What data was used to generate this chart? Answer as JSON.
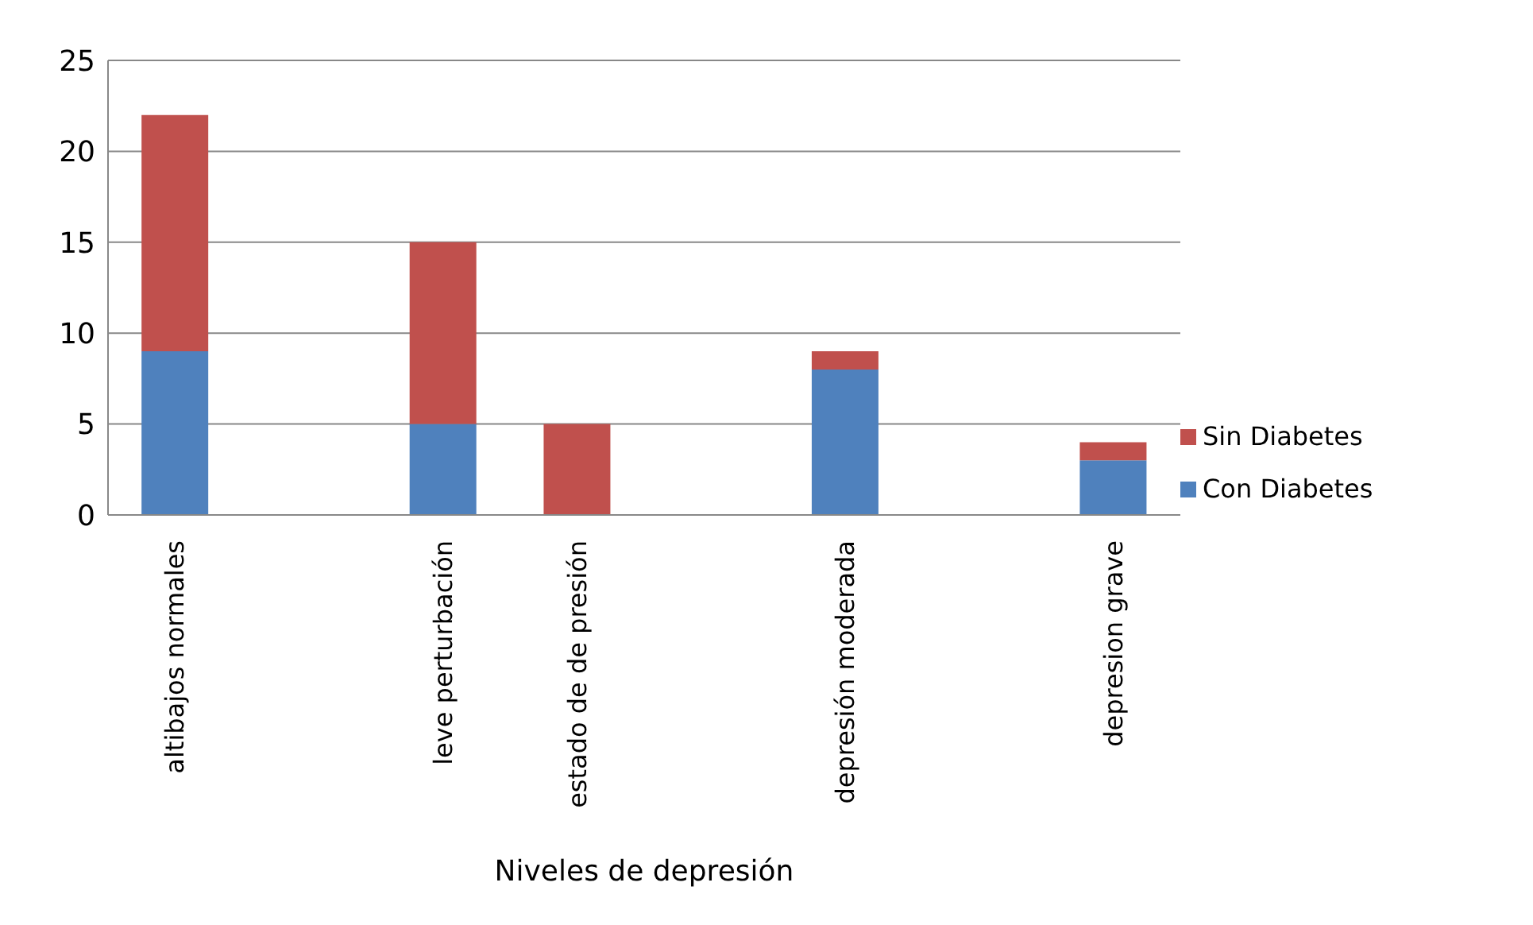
{
  "chart_data": {
    "type": "bar",
    "xlabel": "Niveles de depresión",
    "categories": [
      "altibajos normales",
      null,
      "leve perturbación",
      "estado de de presión",
      null,
      "depresión moderada",
      null,
      "depresion grave"
    ],
    "series": [
      {
        "name": "Con Diabetes",
        "color": "#4f81bd",
        "values": [
          9,
          null,
          5,
          0,
          null,
          8,
          null,
          3
        ]
      },
      {
        "name": "Sin Diabetes",
        "color": "#c0504d",
        "values": [
          13,
          null,
          10,
          5,
          null,
          1,
          null,
          1
        ]
      }
    ],
    "stacked": true,
    "ylim": [
      0,
      25
    ],
    "yticks": [
      0,
      5,
      10,
      15,
      20,
      25
    ],
    "grid": "y",
    "legend": "right"
  }
}
